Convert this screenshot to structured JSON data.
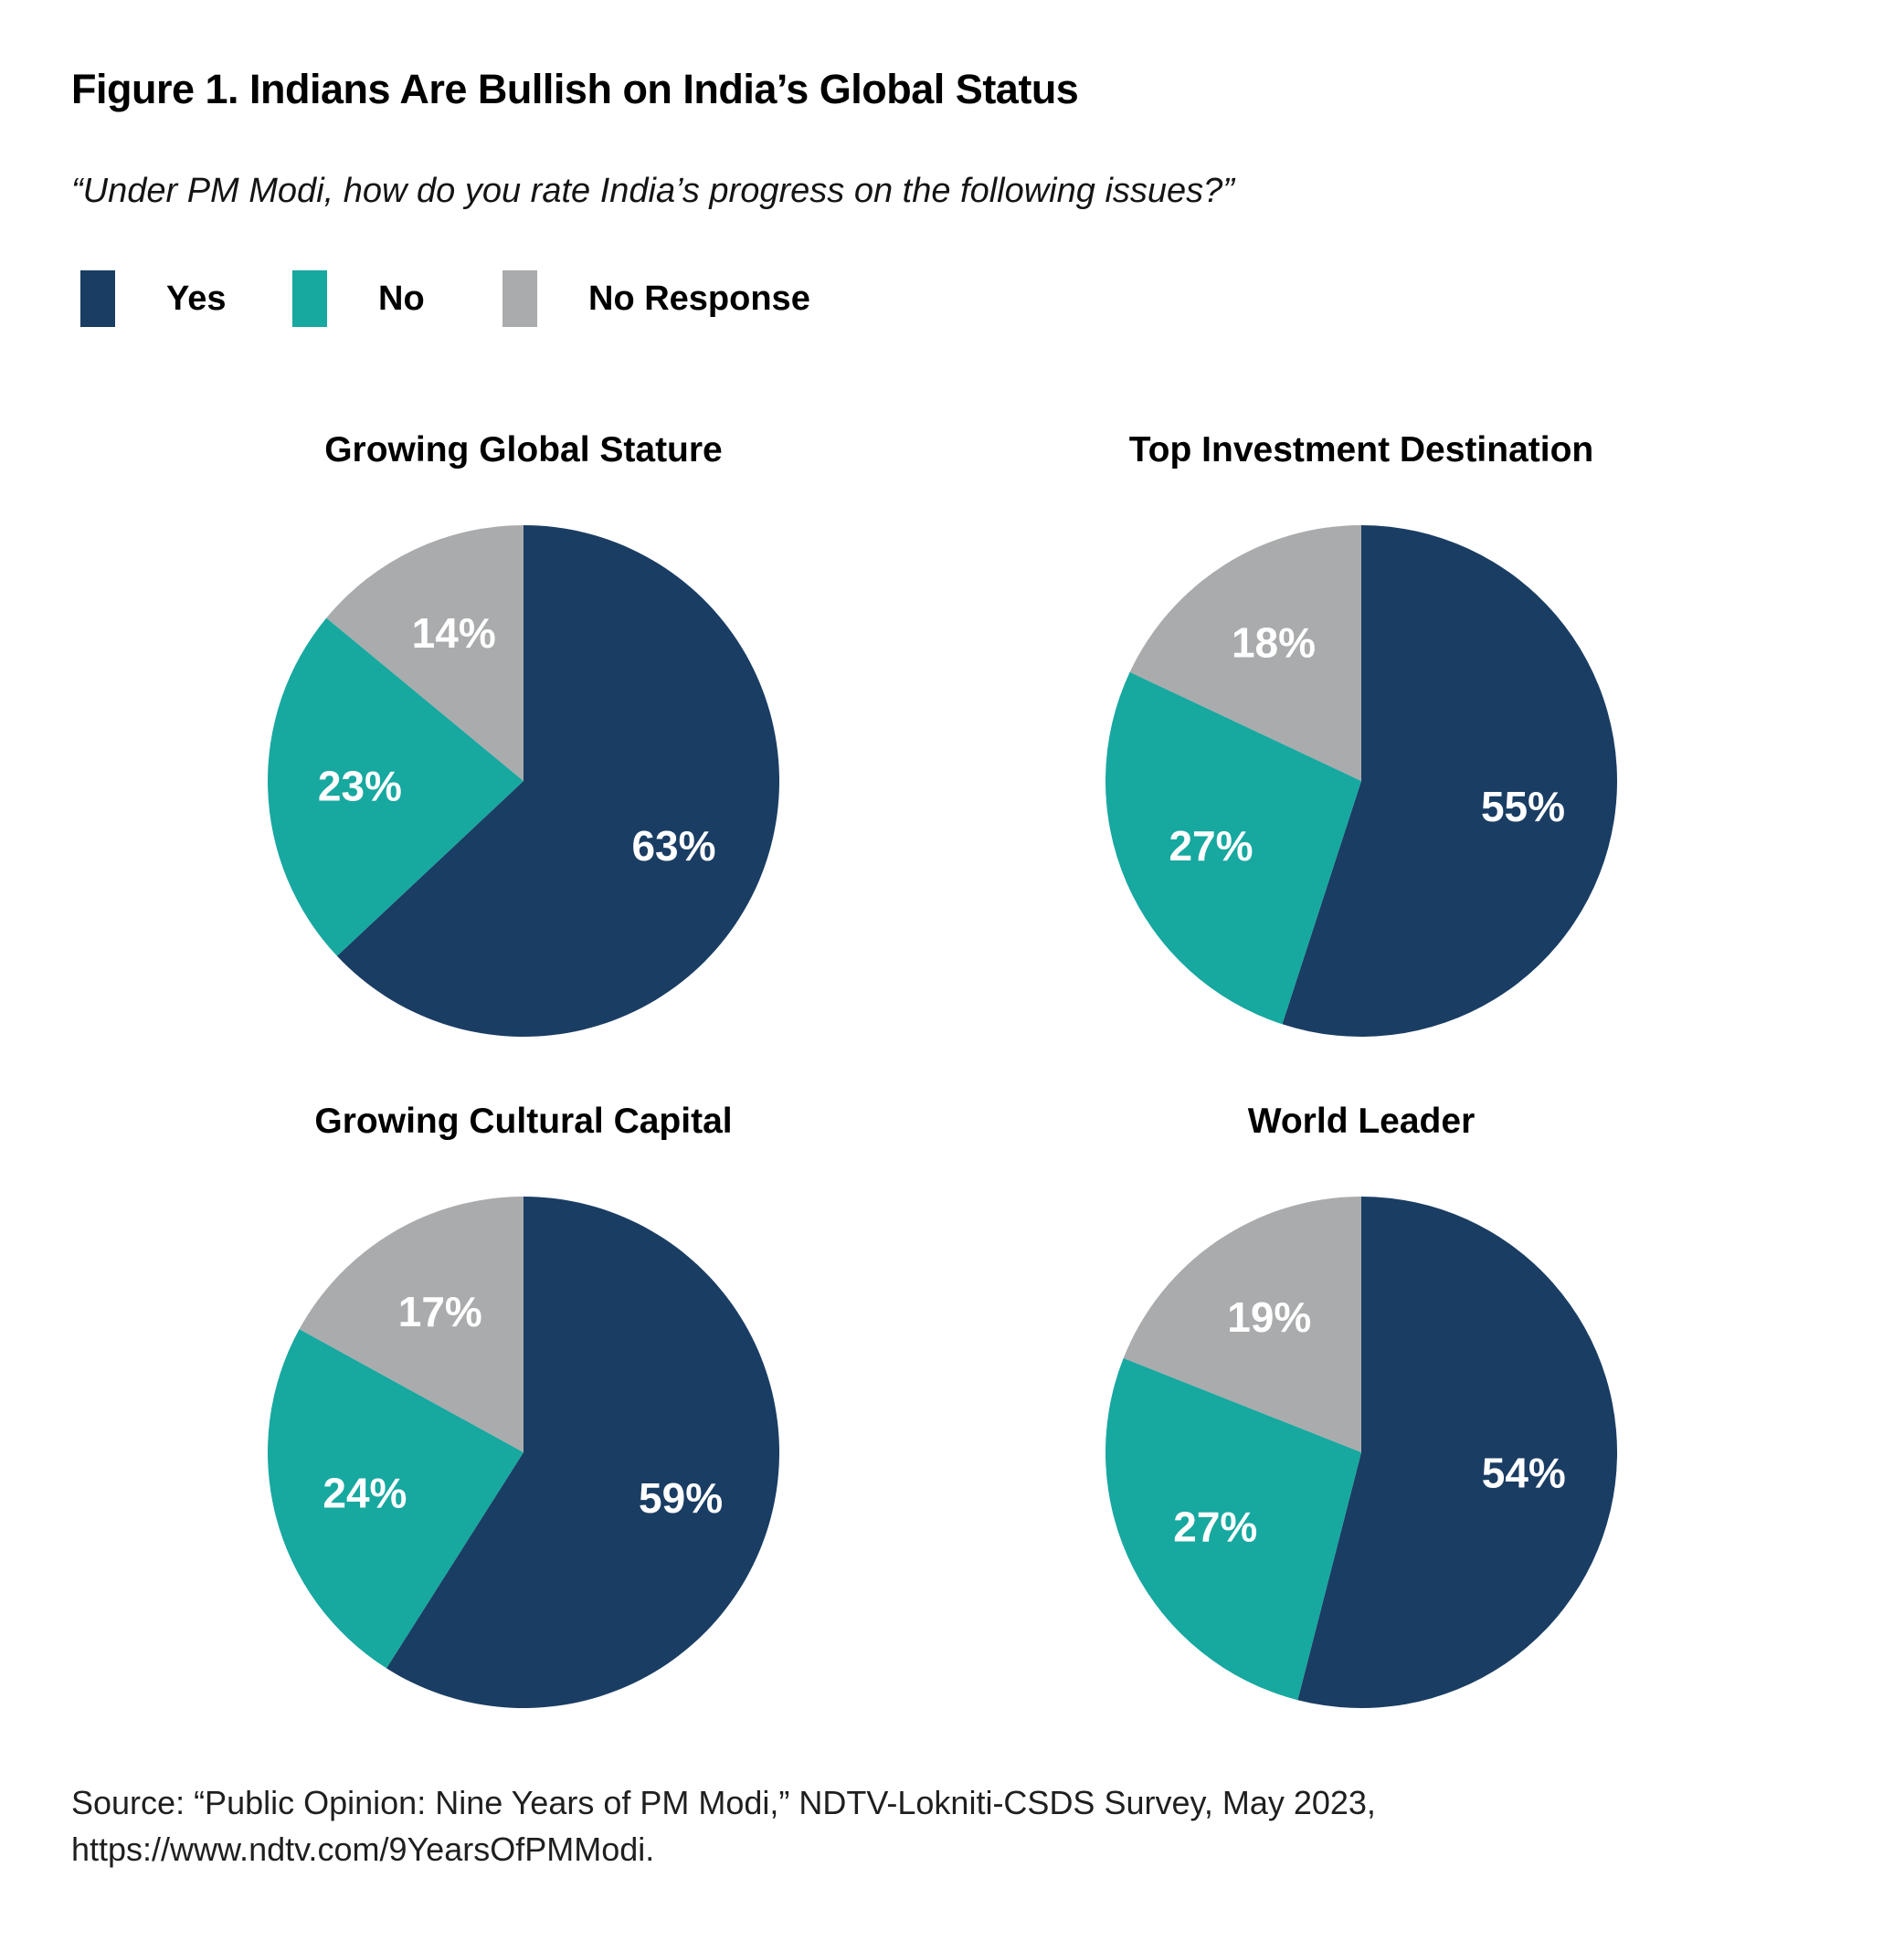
{
  "figure": {
    "title": "Figure 1. Indians Are Bullish on India’s Global Status",
    "subtitle": "“Under PM Modi, how do you rate India’s progress on the following issues?”",
    "source_line1": "Source: “Public Opinion: Nine Years of PM Modi,” NDTV-Lokniti-CSDS Survey, May 2023,",
    "source_line2": "https://www.ndtv.com/9YearsOfPMModi."
  },
  "legend": {
    "position": "top-left",
    "items": [
      {
        "label": "Yes",
        "color": "#1a3d63"
      },
      {
        "label": "No",
        "color": "#17a8a0"
      },
      {
        "label": "No Response",
        "color": "#a9abad"
      }
    ]
  },
  "chart_data": [
    {
      "type": "pie",
      "title": "Growing Global Stature",
      "labels": [
        "Yes",
        "No",
        "No Response"
      ],
      "values": [
        63,
        23,
        14
      ],
      "colors": [
        "#1a3d63",
        "#17a8a0",
        "#a9abad"
      ],
      "value_suffix": "%",
      "start_angle_deg": 0,
      "direction": "clockwise",
      "label_color": "#ffffff"
    },
    {
      "type": "pie",
      "title": "Top Investment Destination",
      "labels": [
        "Yes",
        "No",
        "No Response"
      ],
      "values": [
        55,
        27,
        18
      ],
      "colors": [
        "#1a3d63",
        "#17a8a0",
        "#a9abad"
      ],
      "value_suffix": "%",
      "start_angle_deg": 0,
      "direction": "clockwise",
      "label_color": "#ffffff"
    },
    {
      "type": "pie",
      "title": "Growing Cultural Capital",
      "labels": [
        "Yes",
        "No",
        "No Response"
      ],
      "values": [
        59,
        24,
        17
      ],
      "colors": [
        "#1a3d63",
        "#17a8a0",
        "#a9abad"
      ],
      "value_suffix": "%",
      "start_angle_deg": 0,
      "direction": "clockwise",
      "label_color": "#ffffff"
    },
    {
      "type": "pie",
      "title": "World Leader",
      "labels": [
        "Yes",
        "No",
        "No Response"
      ],
      "values": [
        54,
        27,
        19
      ],
      "colors": [
        "#1a3d63",
        "#17a8a0",
        "#a9abad"
      ],
      "value_suffix": "%",
      "start_angle_deg": 0,
      "direction": "clockwise",
      "label_color": "#ffffff"
    }
  ]
}
